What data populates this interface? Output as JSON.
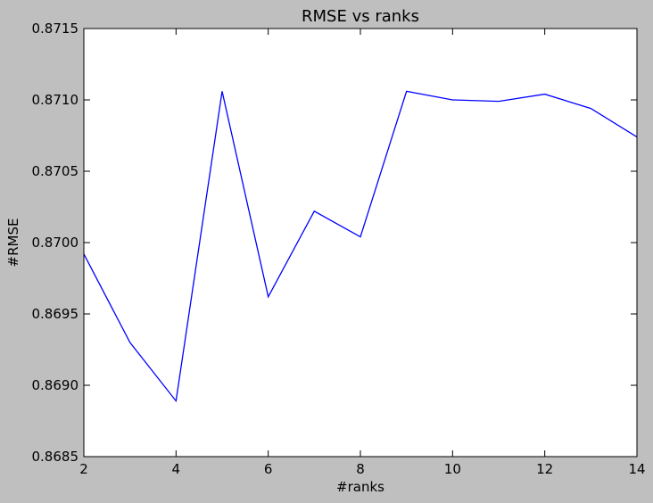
{
  "chart_data": {
    "type": "line",
    "title": "RMSE vs ranks",
    "xlabel": "#ranks",
    "ylabel": "#RMSE",
    "xlim": [
      2,
      14
    ],
    "ylim": [
      0.8685,
      0.8715
    ],
    "xticks": [
      2,
      4,
      6,
      8,
      10,
      12,
      14
    ],
    "yticks": [
      "0.8685",
      "0.8690",
      "0.8695",
      "0.8700",
      "0.8705",
      "0.8710",
      "0.8715"
    ],
    "grid": false,
    "line_color": "#0000ff",
    "series": [
      {
        "x": [
          2,
          3,
          4,
          5,
          6,
          7,
          8,
          9,
          10,
          11,
          12,
          13,
          14
        ],
        "values": [
          0.86992,
          0.8693,
          0.86889,
          0.87106,
          0.86962,
          0.87022,
          0.87004,
          0.87106,
          0.871,
          0.87099,
          0.87104,
          0.87094,
          0.87074
        ]
      }
    ]
  }
}
